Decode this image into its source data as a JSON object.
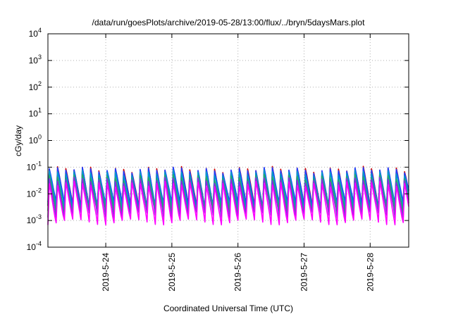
{
  "chart_data": {
    "type": "line",
    "title": "/data/run/goesPlots/archive/2019-05-28/13:00/flux/../bryn/5daysMars.plot",
    "xlabel": "Coordinated Universal Time (UTC)",
    "ylabel": "cGy/day",
    "yscale": "log",
    "ylim": [
      0.0001,
      10000
    ],
    "xlim": [
      "2019-05-23 03:00",
      "2019-05-28 14:00"
    ],
    "grid": true,
    "legend": "none",
    "x_ticks": [
      "2019-5-24",
      "2019-5-25",
      "2019-5-26",
      "2019-5-27",
      "2019-5-28"
    ],
    "y_ticks": [
      {
        "base": "10",
        "exp": "-4",
        "value": 0.0001
      },
      {
        "base": "10",
        "exp": "-3",
        "value": 0.001
      },
      {
        "base": "10",
        "exp": "-2",
        "value": 0.01
      },
      {
        "base": "10",
        "exp": "-1",
        "value": 0.1
      },
      {
        "base": "10",
        "exp": "0",
        "value": 1
      },
      {
        "base": "10",
        "exp": "1",
        "value": 10
      },
      {
        "base": "10",
        "exp": "2",
        "value": 100
      },
      {
        "base": "10",
        "exp": "3",
        "value": 1000
      },
      {
        "base": "10",
        "exp": "4",
        "value": 10000
      }
    ],
    "pattern": {
      "cycle_hours": 3,
      "peak_range": [
        0.05,
        0.1
      ],
      "trough_range": [
        0.001,
        0.002
      ]
    },
    "series": [
      {
        "color": "#cc0000",
        "peak": 0.09,
        "trough": 0.0035
      },
      {
        "color": "#1f3fff",
        "peak": 0.085,
        "trough": 0.004
      },
      {
        "color": "#0099cc",
        "peak": 0.065,
        "trough": 0.003
      },
      {
        "color": "#22aa66",
        "peak": 0.045,
        "trough": 0.0022
      },
      {
        "color": "#8a2be2",
        "peak": 0.035,
        "trough": 0.0016
      },
      {
        "color": "#ff00ff",
        "peak": 0.025,
        "trough": 0.0009
      }
    ]
  }
}
